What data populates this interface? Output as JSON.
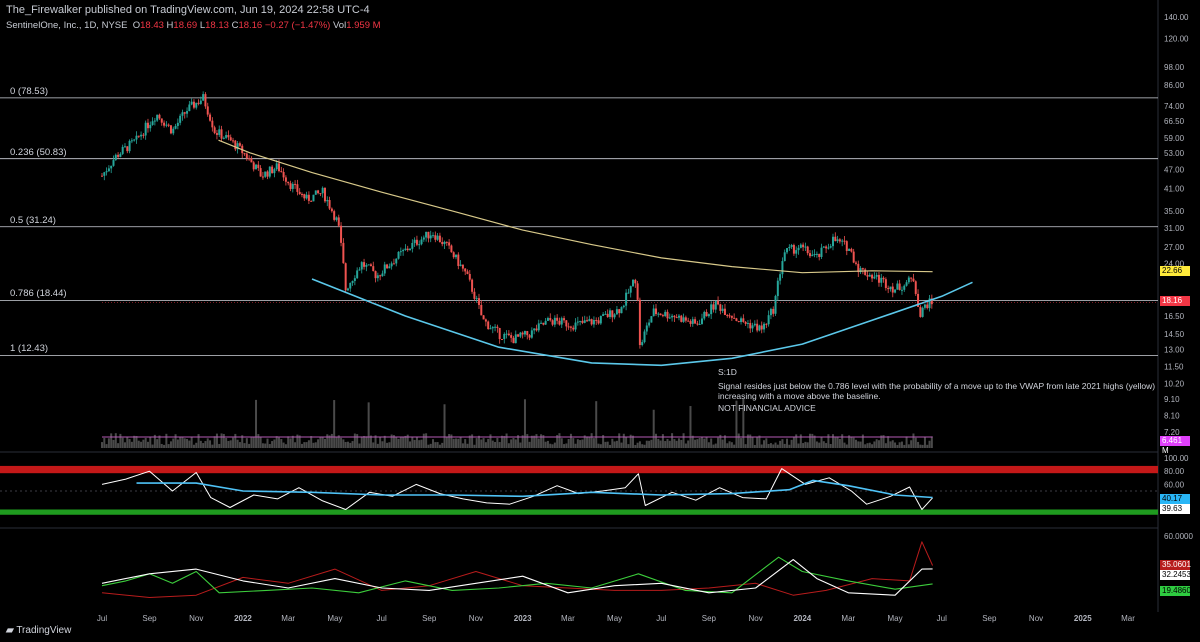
{
  "header": {
    "publisher": "The_Firewalker published on TradingView.com, Jun 19, 2024 22:58 UTC-4",
    "symbol": "SentinelOne, Inc., 1D, NYSE",
    "o_label": "O",
    "o_value": "18.43",
    "h_label": "H",
    "h_value": "18.69",
    "l_label": "L",
    "l_value": "18.13",
    "c_label": "C",
    "c_value": "18.16",
    "change": "−0.27 (−1.47%)",
    "vol_label": "Vol",
    "vol_value": "1.959 M"
  },
  "fib_levels": [
    {
      "label": "0 (78.53)",
      "value": 78.53
    },
    {
      "label": "0.236 (50.83)",
      "value": 50.83
    },
    {
      "label": "0.5 (31.24)",
      "value": 31.24
    },
    {
      "label": "0.786 (18.44)",
      "value": 18.44
    },
    {
      "label": "1 (12.43)",
      "value": 12.43
    }
  ],
  "annotation": {
    "title": "S:1D",
    "body": "Signal resides just below the 0.786 level with the probability of a move up to the VWAP from late 2021 highs (yellow) increasing with a move above the baseline.",
    "disclaimer": "NOT FINANCIAL ADVICE"
  },
  "footer": {
    "brand": "TradingView"
  },
  "colors": {
    "up": "#26a69a",
    "down": "#ef5350",
    "vwap": "#d8c98a",
    "arc": "#5bc8ea",
    "rsi": "#ffffff",
    "rsi_ma": "#4fc3f7",
    "overbought": "#c41818",
    "oversold": "#1f9b1f",
    "dmi_plus": "#3ccd3c",
    "dmi_minus": "#b81c1c",
    "adx": "#ffffff",
    "volume_ma": "#b35ab3"
  },
  "chart_data": [
    {
      "type": "candlestick",
      "log_scale": true,
      "x_ticks": [
        "Jul",
        "Sep",
        "Nov",
        "2022",
        "Mar",
        "May",
        "Jul",
        "Sep",
        "Nov",
        "2023",
        "Mar",
        "May",
        "Jul",
        "Sep",
        "Nov",
        "2024",
        "Mar",
        "May",
        "Jul",
        "Sep",
        "Nov",
        "2025",
        "Mar"
      ],
      "y_ticks": [
        140,
        120,
        98,
        86,
        74,
        66.5,
        59,
        53,
        47,
        41,
        35,
        31,
        27,
        24,
        16.5,
        14.5,
        13,
        11.5,
        10.2,
        9.1,
        8.1,
        7.2
      ],
      "ylim": [
        6.5,
        140
      ],
      "overlays": {
        "vwap_badge": "22.66",
        "last_price": "18.16"
      },
      "price_path": [
        [
          "2021-07-01",
          45
        ],
        [
          "2021-07-20",
          52
        ],
        [
          "2021-08-15",
          58
        ],
        [
          "2021-09-10",
          70
        ],
        [
          "2021-10-01",
          62
        ],
        [
          "2021-10-20",
          72
        ],
        [
          "2021-11-10",
          78.5
        ],
        [
          "2021-11-25",
          62
        ],
        [
          "2021-12-15",
          58
        ],
        [
          "2022-01-05",
          52
        ],
        [
          "2022-01-25",
          45
        ],
        [
          "2022-02-15",
          48
        ],
        [
          "2022-03-05",
          42
        ],
        [
          "2022-03-25",
          38
        ],
        [
          "2022-04-15",
          40
        ],
        [
          "2022-05-05",
          32
        ],
        [
          "2022-05-15",
          20
        ],
        [
          "2022-06-05",
          24
        ],
        [
          "2022-06-25",
          22
        ],
        [
          "2022-07-20",
          25
        ],
        [
          "2022-08-15",
          28
        ],
        [
          "2022-09-05",
          30
        ],
        [
          "2022-09-25",
          27
        ],
        [
          "2022-10-20",
          22
        ],
        [
          "2022-11-10",
          16
        ],
        [
          "2022-12-01",
          14.5
        ],
        [
          "2022-12-20",
          14
        ],
        [
          "2023-01-10",
          14.5
        ],
        [
          "2023-02-05",
          16
        ],
        [
          "2023-03-10",
          15.5
        ],
        [
          "2023-04-10",
          16
        ],
        [
          "2023-05-10",
          17.5
        ],
        [
          "2023-05-30",
          22
        ],
        [
          "2023-06-02",
          13
        ],
        [
          "2023-06-20",
          17
        ],
        [
          "2023-07-20",
          16.5
        ],
        [
          "2023-08-15",
          15.5
        ],
        [
          "2023-09-10",
          18
        ],
        [
          "2023-10-10",
          16
        ],
        [
          "2023-11-10",
          15
        ],
        [
          "2023-11-25",
          17.5
        ],
        [
          "2023-12-08",
          26
        ],
        [
          "2023-12-28",
          27
        ],
        [
          "2024-01-20",
          25
        ],
        [
          "2024-02-10",
          28.5
        ],
        [
          "2024-03-01",
          27
        ],
        [
          "2024-03-15",
          23
        ],
        [
          "2024-04-10",
          21.5
        ],
        [
          "2024-05-01",
          20
        ],
        [
          "2024-05-25",
          21.5
        ],
        [
          "2024-06-03",
          16.5
        ],
        [
          "2024-06-10",
          18
        ],
        [
          "2024-06-19",
          18.16
        ]
      ],
      "vwap_path": [
        [
          "2021-11-30",
          58
        ],
        [
          "2022-01-10",
          53
        ],
        [
          "2022-04-01",
          46
        ],
        [
          "2022-07-01",
          40
        ],
        [
          "2022-10-01",
          35
        ],
        [
          "2023-01-01",
          30.5
        ],
        [
          "2023-04-01",
          27.5
        ],
        [
          "2023-07-01",
          25
        ],
        [
          "2023-10-01",
          23.5
        ],
        [
          "2024-01-01",
          22.5
        ],
        [
          "2024-04-01",
          22.8
        ],
        [
          "2024-06-19",
          22.66
        ]
      ],
      "baseline_arc": [
        [
          "2022-04-01",
          21.5
        ],
        [
          "2022-08-01",
          16.5
        ],
        [
          "2022-12-01",
          13.2
        ],
        [
          "2023-04-01",
          11.8
        ],
        [
          "2023-07-01",
          11.6
        ],
        [
          "2023-10-01",
          12.2
        ],
        [
          "2024-01-01",
          13.5
        ],
        [
          "2024-04-01",
          16
        ],
        [
          "2024-07-01",
          19
        ],
        [
          "2024-08-10",
          21
        ]
      ],
      "volume_badge": "6.461 M"
    },
    {
      "type": "line",
      "name": "RSI",
      "y_ticks": [
        100,
        80,
        60,
        40,
        20
      ],
      "ylim": [
        0,
        100
      ],
      "overbought": 80,
      "oversold": 20,
      "badges": {
        "ma": "40.17",
        "value": "39.63"
      },
      "rsi_path": [
        [
          "2021-07-01",
          60
        ],
        [
          "2021-08-01",
          68
        ],
        [
          "2021-09-01",
          80
        ],
        [
          "2021-10-01",
          50
        ],
        [
          "2021-11-01",
          78
        ],
        [
          "2021-11-20",
          40
        ],
        [
          "2021-12-15",
          25
        ],
        [
          "2022-01-15",
          44
        ],
        [
          "2022-02-15",
          38
        ],
        [
          "2022-03-15",
          55
        ],
        [
          "2022-04-15",
          35
        ],
        [
          "2022-05-15",
          22
        ],
        [
          "2022-06-15",
          48
        ],
        [
          "2022-07-15",
          42
        ],
        [
          "2022-08-15",
          60
        ],
        [
          "2022-09-15",
          46
        ],
        [
          "2022-10-15",
          38
        ],
        [
          "2022-11-15",
          32
        ],
        [
          "2022-12-15",
          30
        ],
        [
          "2023-01-15",
          42
        ],
        [
          "2023-02-15",
          58
        ],
        [
          "2023-03-15",
          46
        ],
        [
          "2023-04-15",
          50
        ],
        [
          "2023-05-15",
          55
        ],
        [
          "2023-06-01",
          76
        ],
        [
          "2023-06-10",
          28
        ],
        [
          "2023-07-15",
          48
        ],
        [
          "2023-08-15",
          36
        ],
        [
          "2023-09-15",
          55
        ],
        [
          "2023-10-15",
          40
        ],
        [
          "2023-11-15",
          38
        ],
        [
          "2023-12-05",
          84
        ],
        [
          "2024-01-05",
          60
        ],
        [
          "2024-02-05",
          70
        ],
        [
          "2024-03-05",
          50
        ],
        [
          "2024-03-25",
          30
        ],
        [
          "2024-04-25",
          42
        ],
        [
          "2024-05-20",
          56
        ],
        [
          "2024-06-05",
          22
        ],
        [
          "2024-06-19",
          39.63
        ]
      ],
      "rsi_ma_path": [
        [
          "2021-08-15",
          62
        ],
        [
          "2021-11-01",
          62
        ],
        [
          "2022-01-01",
          50
        ],
        [
          "2022-04-01",
          48
        ],
        [
          "2022-07-01",
          44
        ],
        [
          "2022-10-01",
          44
        ],
        [
          "2023-01-01",
          42
        ],
        [
          "2023-04-01",
          48
        ],
        [
          "2023-07-01",
          44
        ],
        [
          "2023-10-01",
          46
        ],
        [
          "2023-12-15",
          52
        ],
        [
          "2024-01-15",
          66
        ],
        [
          "2024-03-01",
          58
        ],
        [
          "2024-05-01",
          44
        ],
        [
          "2024-06-19",
          40.17
        ]
      ]
    },
    {
      "type": "line",
      "name": "DMI",
      "y_ticks": [
        60
      ],
      "ylim": [
        0,
        65
      ],
      "badges": {
        "minus": "35.0601",
        "adx": "32.2453",
        "plus": "19.4860"
      },
      "plus_path": [
        [
          "2021-07-01",
          18
        ],
        [
          "2021-08-01",
          22
        ],
        [
          "2021-09-01",
          28
        ],
        [
          "2021-10-01",
          20
        ],
        [
          "2021-11-01",
          30
        ],
        [
          "2021-12-01",
          12
        ],
        [
          "2022-02-01",
          14
        ],
        [
          "2022-04-01",
          16
        ],
        [
          "2022-06-01",
          12
        ],
        [
          "2022-08-01",
          22
        ],
        [
          "2022-10-01",
          14
        ],
        [
          "2022-12-01",
          16
        ],
        [
          "2023-02-01",
          20
        ],
        [
          "2023-04-01",
          16
        ],
        [
          "2023-06-01",
          28
        ],
        [
          "2023-08-01",
          14
        ],
        [
          "2023-10-01",
          12
        ],
        [
          "2023-12-01",
          42
        ],
        [
          "2024-01-01",
          30
        ],
        [
          "2024-03-01",
          22
        ],
        [
          "2024-05-01",
          15
        ],
        [
          "2024-06-19",
          19.5
        ]
      ],
      "minus_path": [
        [
          "2021-07-01",
          12
        ],
        [
          "2021-09-01",
          8
        ],
        [
          "2021-11-01",
          10
        ],
        [
          "2022-01-01",
          25
        ],
        [
          "2022-03-01",
          20
        ],
        [
          "2022-05-01",
          32
        ],
        [
          "2022-07-01",
          14
        ],
        [
          "2022-09-01",
          18
        ],
        [
          "2022-11-01",
          30
        ],
        [
          "2023-01-01",
          18
        ],
        [
          "2023-03-01",
          16
        ],
        [
          "2023-05-01",
          14
        ],
        [
          "2023-07-01",
          14
        ],
        [
          "2023-09-01",
          16
        ],
        [
          "2023-11-01",
          20
        ],
        [
          "2023-12-20",
          10
        ],
        [
          "2024-02-01",
          14
        ],
        [
          "2024-04-01",
          24
        ],
        [
          "2024-05-20",
          22
        ],
        [
          "2024-06-05",
          55
        ],
        [
          "2024-06-19",
          35
        ]
      ],
      "adx_path": [
        [
          "2021-07-01",
          20
        ],
        [
          "2021-09-01",
          28
        ],
        [
          "2021-11-01",
          32
        ],
        [
          "2022-01-01",
          22
        ],
        [
          "2022-03-01",
          16
        ],
        [
          "2022-05-01",
          24
        ],
        [
          "2022-07-01",
          16
        ],
        [
          "2022-09-01",
          14
        ],
        [
          "2022-11-01",
          20
        ],
        [
          "2023-01-01",
          26
        ],
        [
          "2023-03-01",
          12
        ],
        [
          "2023-05-01",
          18
        ],
        [
          "2023-07-01",
          20
        ],
        [
          "2023-09-01",
          12
        ],
        [
          "2023-11-01",
          16
        ],
        [
          "2023-12-20",
          40
        ],
        [
          "2024-01-20",
          24
        ],
        [
          "2024-03-01",
          12
        ],
        [
          "2024-05-01",
          10
        ],
        [
          "2024-06-05",
          32
        ],
        [
          "2024-06-19",
          32.2
        ]
      ]
    }
  ]
}
